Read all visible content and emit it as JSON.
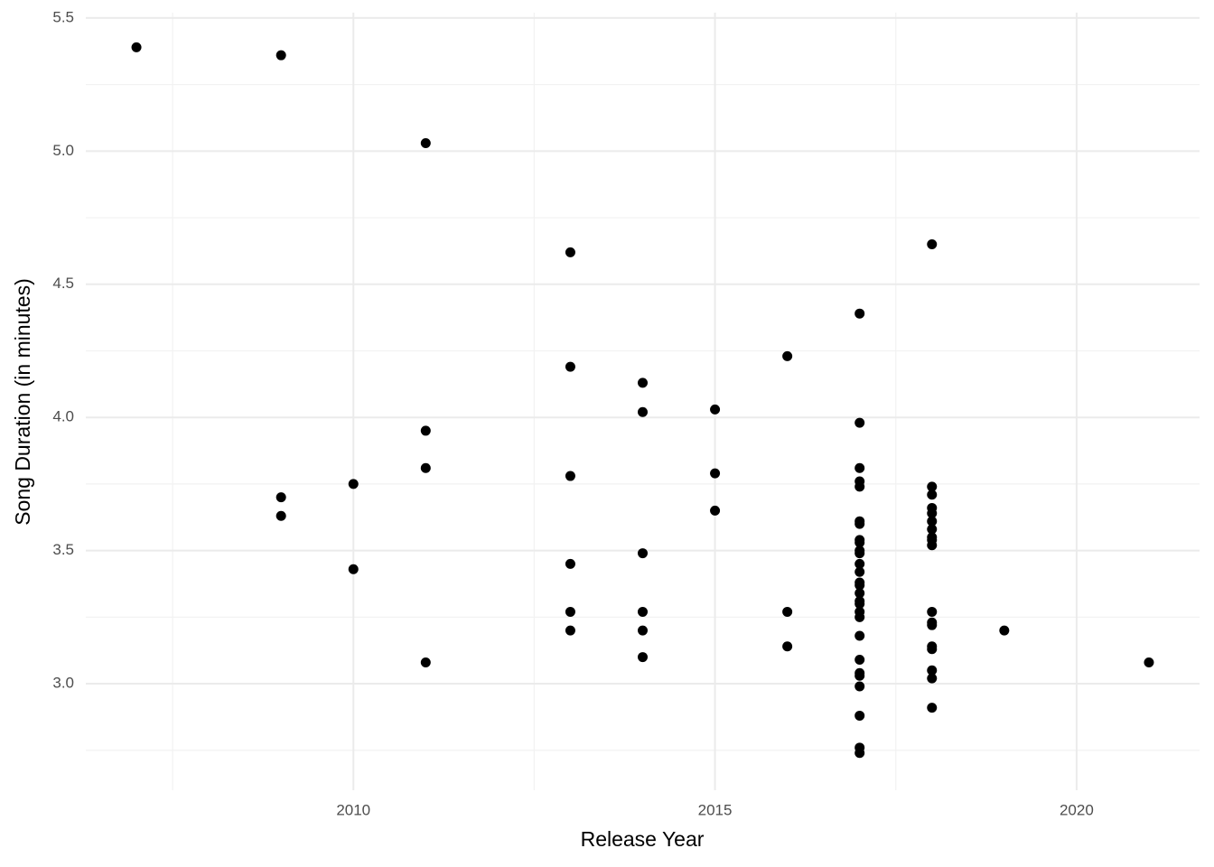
{
  "chart_data": {
    "type": "scatter",
    "x_label": "Release Year",
    "y_label": "Song Duration (in minutes)",
    "color": "#000000",
    "xlim": [
      2006.3,
      2021.7
    ],
    "ylim": [
      2.6,
      5.52
    ],
    "xticks": [
      2010,
      2015,
      2020
    ],
    "yticks": [
      {
        "value": 3,
        "label": "3.0"
      },
      3.5,
      {
        "value": 4,
        "label": "4.0"
      },
      4.5,
      {
        "value": 5,
        "label": "5.0"
      },
      5.5
    ],
    "xminorticks": [
      2007.5,
      2012.5,
      2017.5
    ],
    "yminorticks": [
      2.75,
      3.25,
      3.75,
      4.25,
      4.75,
      5.25
    ],
    "grid": true,
    "x": [
      2007,
      2009,
      2009,
      2009,
      2010,
      2010,
      2011,
      2011,
      2011,
      2011,
      2013,
      2013,
      2013,
      2013,
      2013,
      2013,
      2014,
      2014,
      2014,
      2014,
      2014,
      2014,
      2015,
      2015,
      2015,
      2016,
      2016,
      2016,
      2017,
      2017,
      2017,
      2017,
      2017,
      2017,
      2017,
      2017,
      2017,
      2017,
      2017,
      2017,
      2017,
      2017,
      2017,
      2017,
      2017,
      2017,
      2017,
      2017,
      2017,
      2017,
      2017,
      2017,
      2017,
      2017,
      2017,
      2017,
      2018,
      2018,
      2018,
      2018,
      2018,
      2018,
      2018,
      2018,
      2018,
      2018,
      2018,
      2018,
      2018,
      2018,
      2018,
      2018,
      2018,
      2018,
      2019,
      2021
    ],
    "y": [
      5.39,
      5.36,
      3.7,
      3.63,
      3.75,
      3.43,
      5.03,
      3.95,
      3.81,
      3.08,
      4.62,
      4.19,
      3.78,
      3.45,
      3.27,
      3.2,
      4.13,
      4.02,
      3.49,
      3.27,
      3.2,
      3.1,
      4.03,
      3.79,
      3.65,
      4.23,
      3.27,
      3.14,
      4.39,
      3.98,
      3.81,
      3.76,
      3.74,
      3.61,
      3.6,
      3.54,
      3.53,
      3.5,
      3.49,
      3.45,
      3.42,
      3.38,
      3.37,
      3.34,
      3.31,
      3.3,
      3.27,
      3.25,
      3.18,
      3.09,
      3.04,
      3.03,
      2.99,
      2.88,
      2.76,
      2.74,
      4.65,
      3.74,
      3.71,
      3.66,
      3.64,
      3.61,
      3.58,
      3.55,
      3.54,
      3.52,
      3.27,
      3.23,
      3.22,
      3.14,
      3.13,
      3.05,
      3.02,
      2.91,
      3.2,
      3.08
    ]
  }
}
